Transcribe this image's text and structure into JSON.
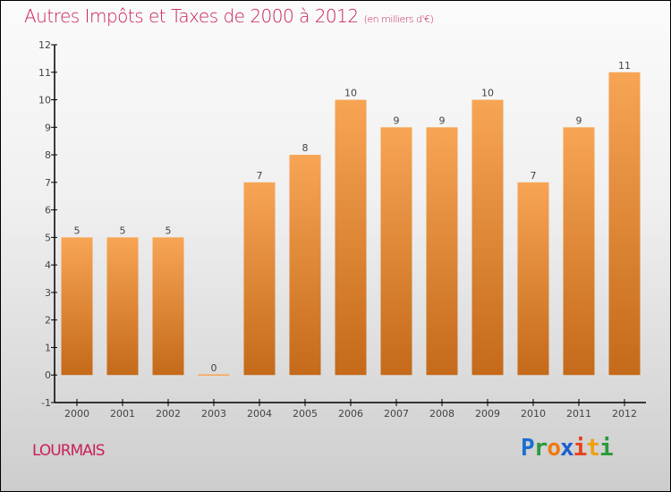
{
  "header": {
    "title": "Autres Impôts et Taxes de 2000 à 2012",
    "unit": "(en milliers d'€)"
  },
  "footer": {
    "city": "LOURMAIS",
    "logo": [
      "P",
      "r",
      "o",
      "x",
      "i",
      "t",
      "i"
    ]
  },
  "colors": {
    "bar_top": "#f7a555",
    "bar_bottom": "#c46a1a",
    "title": "#c8205a"
  },
  "chart_data": {
    "type": "bar",
    "title": "Autres Impôts et Taxes de 2000 à 2012",
    "xlabel": "",
    "ylabel": "",
    "categories": [
      "2000",
      "2001",
      "2002",
      "2003",
      "2004",
      "2005",
      "2006",
      "2007",
      "2008",
      "2009",
      "2010",
      "2011",
      "2012"
    ],
    "values": [
      5,
      5,
      5,
      0,
      7,
      8,
      10,
      9,
      9,
      10,
      7,
      9,
      11
    ],
    "ylim": [
      -1,
      12
    ],
    "yticks": [
      -1,
      0,
      1,
      2,
      3,
      4,
      5,
      6,
      7,
      8,
      9,
      10,
      11,
      12
    ],
    "grid": false
  }
}
